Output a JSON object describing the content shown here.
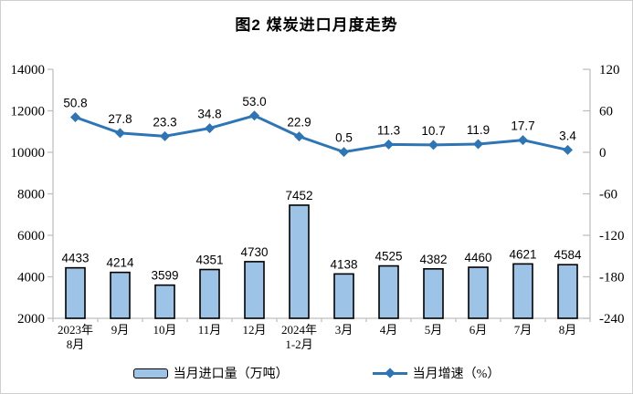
{
  "page": {
    "title": "图2 煤炭进口月度走势"
  },
  "chart_data": {
    "type": "bar",
    "subtype": "bar-line-combo",
    "title": "图2 煤炭进口月度走势",
    "categories": [
      [
        "2023年",
        "8月"
      ],
      [
        "9月"
      ],
      [
        "10月"
      ],
      [
        "11月"
      ],
      [
        "12月"
      ],
      [
        "2024年",
        "1-2月"
      ],
      [
        "3月"
      ],
      [
        "4月"
      ],
      [
        "5月"
      ],
      [
        "6月"
      ],
      [
        "7月"
      ],
      [
        "8月"
      ]
    ],
    "series": [
      {
        "name": "当月进口量（万吨）",
        "type": "bar",
        "axis": "left",
        "values": [
          4433,
          4214,
          3599,
          4351,
          4730,
          7452,
          4138,
          4525,
          4382,
          4460,
          4621,
          4584
        ]
      },
      {
        "name": "当月增速（%）",
        "type": "line",
        "axis": "right",
        "values": [
          50.8,
          27.8,
          23.3,
          34.8,
          53.0,
          22.9,
          0.5,
          11.3,
          10.7,
          11.9,
          17.7,
          3.4
        ]
      }
    ],
    "left_axis": {
      "min": 2000,
      "max": 14000,
      "step": 2000,
      "ticks": [
        14000,
        12000,
        10000,
        8000,
        6000,
        4000,
        2000
      ]
    },
    "right_axis": {
      "min": -240,
      "max": 120,
      "step": 60,
      "ticks": [
        120,
        60,
        0,
        -60,
        -120,
        -180,
        -240
      ]
    },
    "grid": false,
    "legend_position": "bottom"
  },
  "legend": {
    "items": [
      {
        "label": "当月进口量（万吨）",
        "swatch": "bar"
      },
      {
        "label": "当月增速（%）",
        "swatch": "line"
      }
    ]
  },
  "colors": {
    "bar_fill": "#9DC3E6",
    "bar_border": "#000000",
    "line": "#2E75B6",
    "axis": "#BFBFBF",
    "text": "#000000"
  }
}
